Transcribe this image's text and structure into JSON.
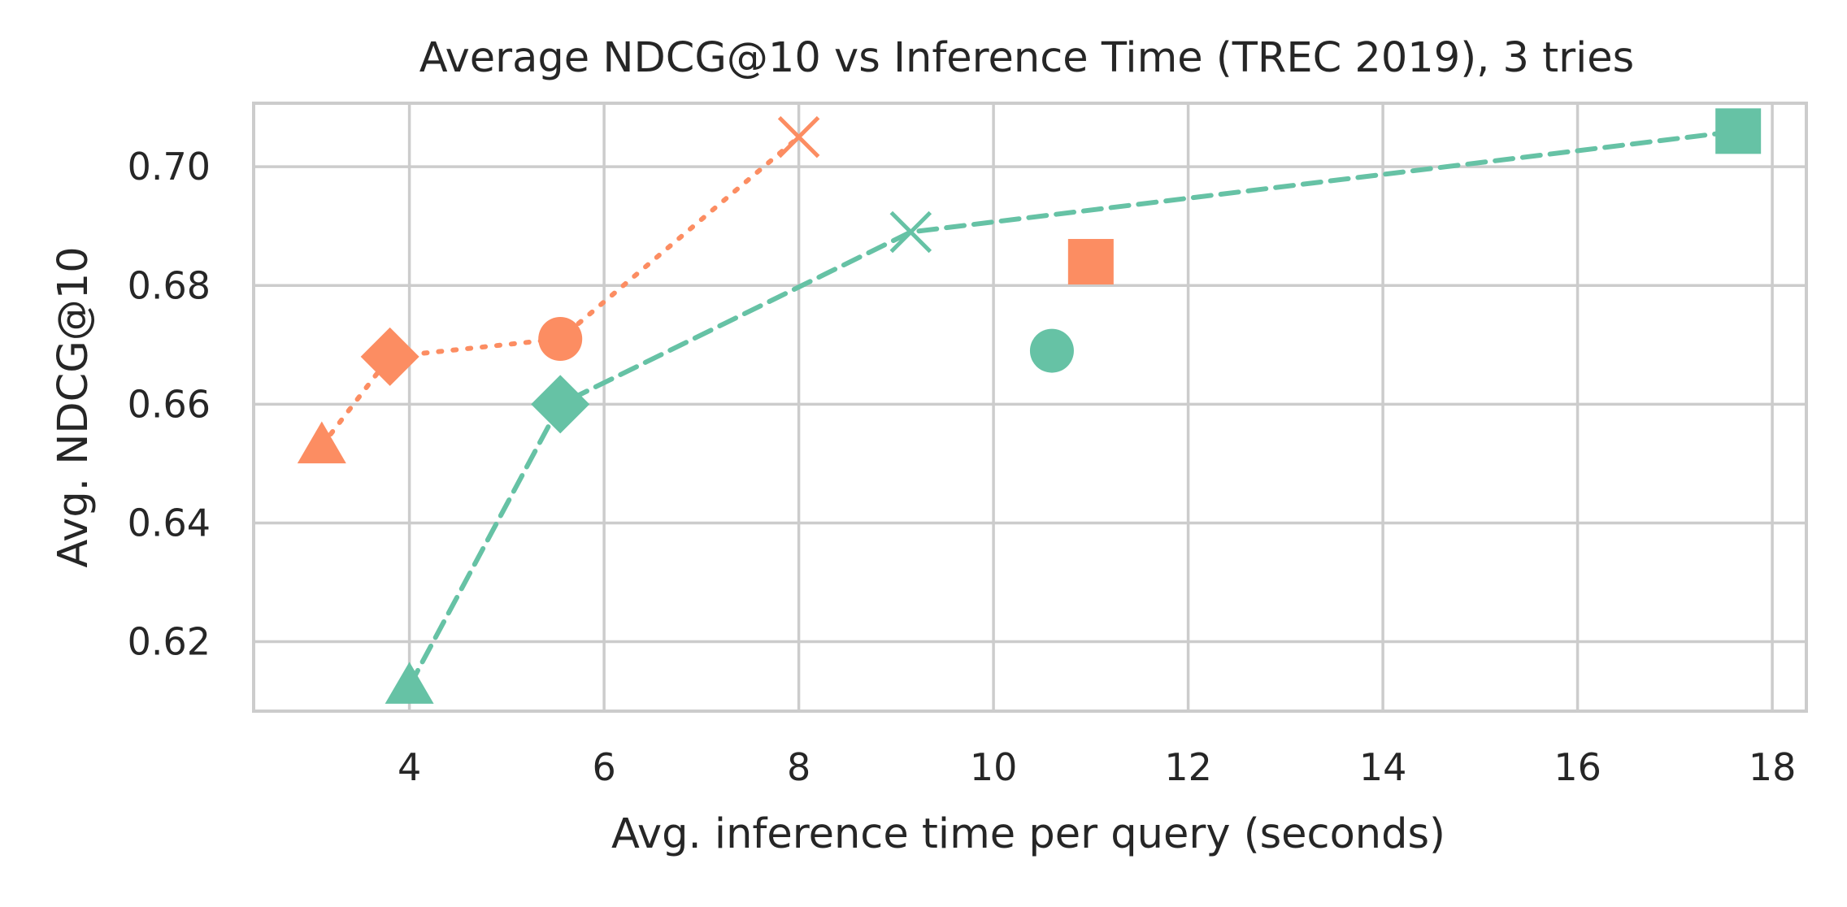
{
  "chart_data": {
    "type": "scatter",
    "title": "Average NDCG@10 vs Inference Time (TREC 2019), 3 tries",
    "xlabel": "Avg. inference time per query (seconds)",
    "ylabel": "Avg. NDCG@10",
    "xlim": [
      2.4,
      18.35
    ],
    "ylim": [
      0.6083,
      0.7107
    ],
    "xticks": [
      4,
      6,
      8,
      10,
      12,
      14,
      16,
      18
    ],
    "yticks": [
      0.62,
      0.64,
      0.66,
      0.68,
      0.7
    ],
    "xtick_labels": [
      "4",
      "6",
      "8",
      "10",
      "12",
      "14",
      "16",
      "18"
    ],
    "ytick_labels": [
      "0.62",
      "0.64",
      "0.66",
      "0.68",
      "0.70"
    ],
    "grid": true,
    "series": [
      {
        "name": "orange",
        "color": "#fc8d62",
        "line_style": "dotted",
        "points": [
          {
            "x": 3.1,
            "y": 0.653,
            "marker": "triangle"
          },
          {
            "x": 3.8,
            "y": 0.668,
            "marker": "diamond"
          },
          {
            "x": 5.55,
            "y": 0.671,
            "marker": "circle"
          },
          {
            "x": 8.0,
            "y": 0.705,
            "marker": "x"
          }
        ],
        "extra_points": [
          {
            "x": 11.0,
            "y": 0.684,
            "marker": "square"
          }
        ]
      },
      {
        "name": "green",
        "color": "#66c2a5",
        "line_style": "dashed",
        "points": [
          {
            "x": 4.0,
            "y": 0.6125,
            "marker": "triangle"
          },
          {
            "x": 5.55,
            "y": 0.66,
            "marker": "diamond"
          },
          {
            "x": 9.15,
            "y": 0.689,
            "marker": "x"
          },
          {
            "x": 17.65,
            "y": 0.706,
            "marker": "square"
          }
        ],
        "extra_points": [
          {
            "x": 10.6,
            "y": 0.669,
            "marker": "circle"
          }
        ]
      }
    ]
  }
}
